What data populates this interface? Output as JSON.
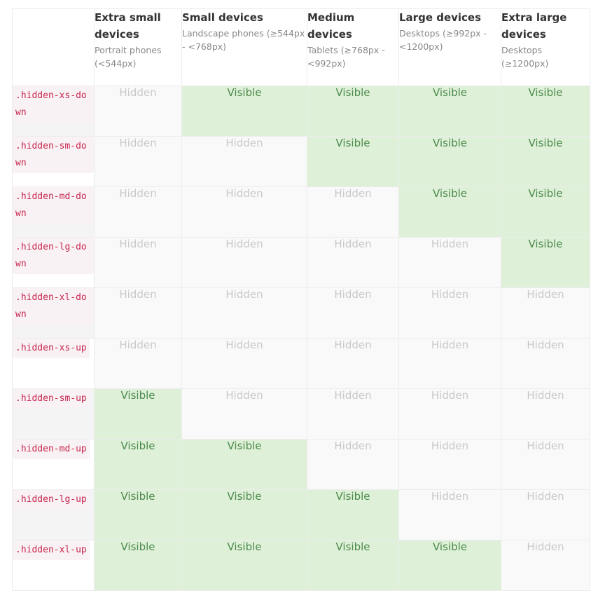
{
  "columns": [
    {
      "title": "Extra small devices",
      "sub": "Portrait phones (<544px)"
    },
    {
      "title": "Small devices",
      "sub": "Landscape phones (≥544px - <768px)"
    },
    {
      "title": "Medium devices",
      "sub": "Tablets (≥768px - <992px)"
    },
    {
      "title": "Large devices",
      "sub": "Desktops (≥992px - <1200px)"
    },
    {
      "title": "Extra large devices",
      "sub": "Desktops (≥1200px)"
    }
  ],
  "rows": [
    {
      "cls": ".hidden-xs-down",
      "cells": [
        "Hidden",
        "Visible",
        "Visible",
        "Visible",
        "Visible"
      ]
    },
    {
      "cls": ".hidden-sm-down",
      "cells": [
        "Hidden",
        "Hidden",
        "Visible",
        "Visible",
        "Visible"
      ]
    },
    {
      "cls": ".hidden-md-down",
      "cells": [
        "Hidden",
        "Hidden",
        "Hidden",
        "Visible",
        "Visible"
      ]
    },
    {
      "cls": ".hidden-lg-down",
      "cells": [
        "Hidden",
        "Hidden",
        "Hidden",
        "Hidden",
        "Visible"
      ]
    },
    {
      "cls": ".hidden-xl-down",
      "cells": [
        "Hidden",
        "Hidden",
        "Hidden",
        "Hidden",
        "Hidden"
      ]
    },
    {
      "cls": ".hidden-xs-up",
      "cells": [
        "Hidden",
        "Hidden",
        "Hidden",
        "Hidden",
        "Hidden"
      ]
    },
    {
      "cls": ".hidden-sm-up",
      "cells": [
        "Visible",
        "Hidden",
        "Hidden",
        "Hidden",
        "Hidden"
      ]
    },
    {
      "cls": ".hidden-md-up",
      "cells": [
        "Visible",
        "Visible",
        "Hidden",
        "Hidden",
        "Hidden"
      ]
    },
    {
      "cls": ".hidden-lg-up",
      "cells": [
        "Visible",
        "Visible",
        "Visible",
        "Hidden",
        "Hidden"
      ]
    },
    {
      "cls": ".hidden-xl-up",
      "cells": [
        "Visible",
        "Visible",
        "Visible",
        "Visible",
        "Hidden"
      ]
    }
  ],
  "colors": {
    "visible_bg": "#dff0d8",
    "visible_text": "#4a8a4a",
    "hidden_bg": "#f9f9f9",
    "hidden_text": "#c9c9c9",
    "code_text": "#c7254e"
  }
}
